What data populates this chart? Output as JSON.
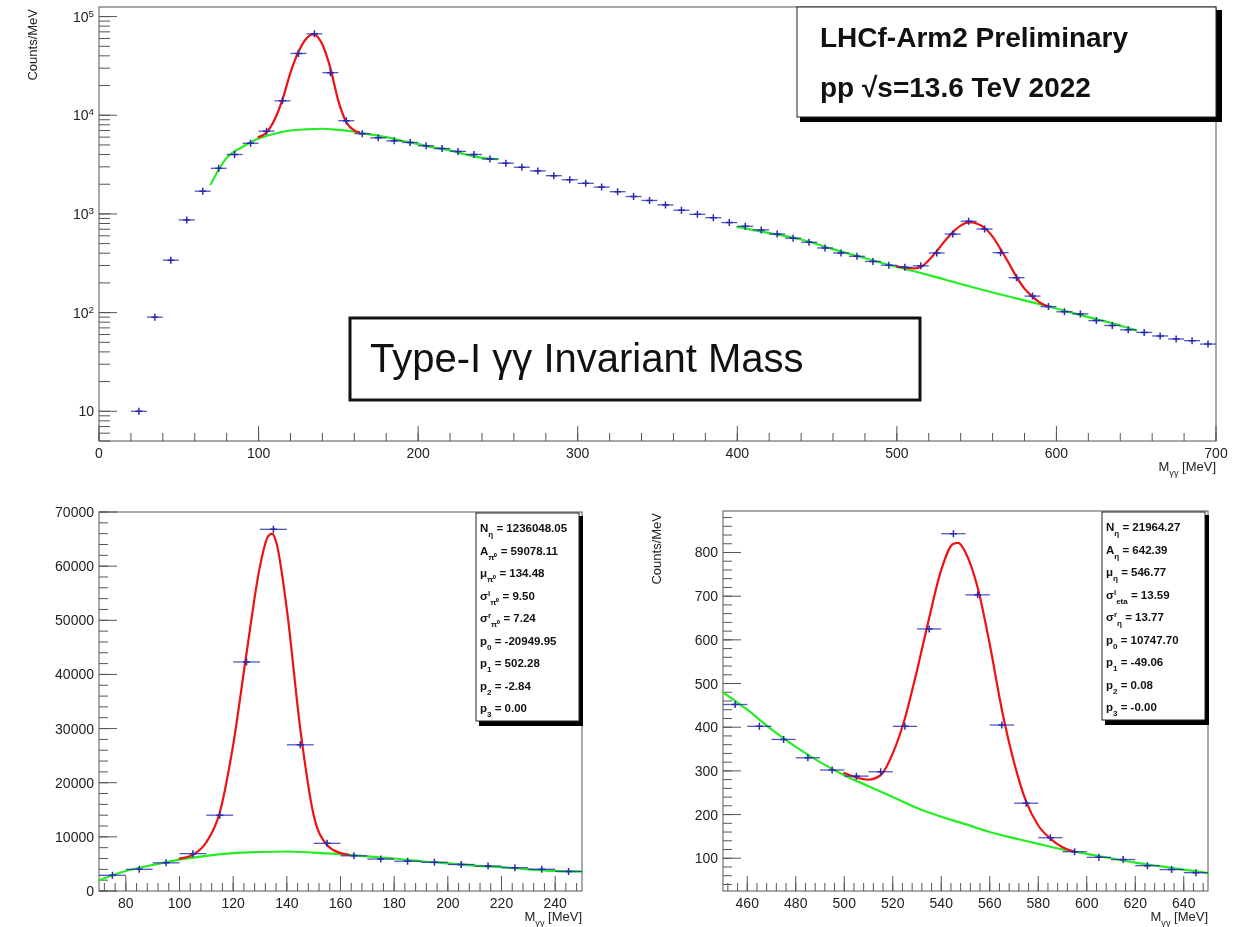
{
  "chart_data": [
    {
      "type": "scatter",
      "xlabel": "M$_{γγ}$ [MeV]",
      "ylabel": "Counts/MeV",
      "log": "y",
      "xlim": [
        0,
        700
      ],
      "ylim": [
        5,
        125000
      ],
      "xticks": [
        0,
        100,
        200,
        300,
        400,
        500,
        600,
        700
      ],
      "yticks": [
        {
          "value": 10,
          "label": "10"
        },
        {
          "value": 100,
          "label": "10$^{2}$"
        },
        {
          "value": 1000,
          "label": "10$^{3}$"
        },
        {
          "value": 10000,
          "label": "10$^{4}$"
        },
        {
          "value": 100000,
          "label": "10$^{5}$"
        }
      ],
      "annotations": [
        "LHCf-Arm2 Preliminary",
        "pp  √s=13.6 TeV 2022",
        "Type-I γγ Invariant Mass"
      ],
      "series": [
        {
          "type": "line",
          "color": "#22ee22",
          "x": [
            70,
            80,
            90,
            100,
            110,
            120,
            130,
            140,
            150,
            160,
            170,
            180,
            190,
            200,
            210,
            220,
            230,
            240,
            250
          ],
          "values": [
            2000,
            3700,
            4800,
            5800,
            6500,
            7000,
            7200,
            7300,
            7100,
            6800,
            6400,
            6000,
            5500,
            5100,
            4700,
            4400,
            4000,
            3700,
            3600
          ]
        },
        {
          "type": "line",
          "color": "#22ee22",
          "x": [
            400,
            420,
            440,
            460,
            480,
            500,
            520,
            540,
            560,
            580,
            600,
            620,
            640,
            650
          ],
          "values": [
            740,
            640,
            550,
            440,
            355,
            290,
            240,
            195,
            160,
            133,
            110,
            90,
            74,
            66
          ]
        },
        {
          "type": "line",
          "color": "#ee1111",
          "x": [
            100,
            105,
            110,
            115,
            120,
            125,
            130,
            133,
            134.5,
            136,
            140,
            145,
            150,
            155,
            160,
            163
          ],
          "values": [
            6000,
            6700,
            9000,
            14500,
            27000,
            44000,
            60000,
            65500,
            66000,
            64500,
            52000,
            30000,
            14000,
            8500,
            7000,
            6700
          ]
        },
        {
          "type": "line",
          "color": "#ee1111",
          "x": [
            500,
            505,
            510,
            515,
            520,
            525,
            530,
            535,
            540,
            545,
            547,
            550,
            555,
            560,
            565,
            570,
            575,
            580,
            585,
            590,
            595
          ],
          "values": [
            295,
            285,
            280,
            290,
            340,
            420,
            530,
            650,
            760,
            820,
            822,
            800,
            720,
            590,
            440,
            320,
            230,
            175,
            145,
            125,
            115
          ]
        },
        {
          "type": "scatter",
          "marker": "cross",
          "color": "#2a2ab0",
          "x": [
            25,
            35,
            45,
            55,
            65,
            75,
            85,
            95,
            105,
            115,
            125,
            135,
            145,
            155,
            165,
            175,
            185,
            195,
            205,
            215,
            225,
            235,
            245,
            255,
            265,
            275,
            285,
            295,
            305,
            315,
            325,
            335,
            345,
            355,
            365,
            375,
            385,
            395,
            405,
            415,
            425,
            435,
            445,
            455,
            465,
            475,
            485,
            495,
            505,
            515,
            525,
            535,
            545,
            555,
            565,
            575,
            585,
            595,
            605,
            615,
            625,
            635,
            645,
            655,
            665,
            675,
            685,
            695
          ],
          "values": [
            10,
            90,
            340,
            870,
            1700,
            2900,
            4000,
            5200,
            6900,
            14000,
            42300,
            66800,
            27000,
            8800,
            6500,
            5900,
            5500,
            5300,
            4900,
            4600,
            4300,
            4000,
            3600,
            3270,
            2970,
            2730,
            2440,
            2220,
            2040,
            1870,
            1680,
            1500,
            1370,
            1235,
            1090,
            990,
            917,
            817,
            750,
            688,
            625,
            568,
            516,
            452,
            402,
            372,
            330,
            302,
            288,
            298,
            402,
            625,
            843,
            703,
            405,
            226,
            147,
            115,
            102,
            97,
            83,
            74,
            67,
            63,
            58,
            54,
            52,
            48
          ],
          "xerrors": [
            5,
            5,
            5,
            5,
            5,
            5,
            5,
            5,
            5,
            5,
            5,
            5,
            5,
            5,
            5,
            5,
            5,
            5,
            5,
            5,
            5,
            5,
            5,
            5,
            5,
            5,
            5,
            5,
            5,
            5,
            5,
            5,
            5,
            5,
            5,
            5,
            5,
            5,
            5,
            5,
            5,
            5,
            5,
            5,
            5,
            5,
            5,
            5,
            5,
            5,
            5,
            5,
            5,
            5,
            5,
            5,
            5,
            5,
            5,
            5,
            5,
            5,
            5,
            5,
            5,
            5,
            5,
            5
          ]
        }
      ]
    },
    {
      "type": "scatter",
      "xlabel": "M$_{γγ}$ [MeV]",
      "xlim": [
        70,
        250
      ],
      "ylim": [
        0,
        70000
      ],
      "xticks": [
        80,
        100,
        120,
        140,
        160,
        180,
        200,
        220,
        240
      ],
      "yticks": [
        0,
        10000,
        20000,
        30000,
        40000,
        50000,
        60000,
        70000
      ],
      "annotations": [
        "N$_{η}$ = 1236048.05",
        "A$_{π⁰}$ = 59078.11",
        "μ$_{π⁰}$ = 134.48",
        "σ$^{l}$$_{π⁰}$ = 9.50",
        "σ$^{r}$$_{π⁰}$ = 7.24",
        "p$_{0}$ = -20949.95",
        "p$_{1}$ = 502.28",
        "p$_{2}$ = -2.84",
        "p$_{3}$ = 0.00"
      ],
      "series": [
        {
          "type": "line",
          "color": "#22ee22",
          "x": [
            70,
            80,
            90,
            100,
            110,
            120,
            130,
            140,
            150,
            160,
            170,
            180,
            190,
            200,
            210,
            220,
            230,
            240,
            250
          ],
          "values": [
            2000,
            3700,
            4800,
            5800,
            6500,
            7000,
            7200,
            7300,
            7100,
            6800,
            6400,
            6000,
            5500,
            5100,
            4700,
            4400,
            4000,
            3700,
            3600
          ]
        },
        {
          "type": "line",
          "color": "#ee1111",
          "x": [
            100,
            105,
            110,
            115,
            120,
            125,
            130,
            133,
            134.5,
            136,
            140,
            145,
            150,
            155,
            160,
            163
          ],
          "values": [
            6000,
            6700,
            9000,
            14500,
            27000,
            44000,
            60000,
            65500,
            66000,
            64500,
            52000,
            30000,
            14000,
            8500,
            7000,
            6700
          ]
        },
        {
          "type": "scatter",
          "marker": "cross",
          "color": "#2a2ab0",
          "x": [
            75,
            85,
            95,
            105,
            115,
            125,
            135,
            145,
            155,
            165,
            175,
            185,
            195,
            205,
            215,
            225,
            235,
            245
          ],
          "values": [
            2900,
            4000,
            5200,
            6900,
            14000,
            42300,
            66800,
            27000,
            8800,
            6500,
            5900,
            5500,
            5300,
            4900,
            4600,
            4300,
            4000,
            3600
          ],
          "xerrors": [
            5,
            5,
            5,
            5,
            5,
            5,
            5,
            5,
            5,
            5,
            5,
            5,
            5,
            5,
            5,
            5,
            5,
            5
          ]
        }
      ]
    },
    {
      "type": "scatter",
      "xlabel": "M$_{γγ}$ [MeV]",
      "ylabel": "Counts/MeV",
      "xlim": [
        450,
        650
      ],
      "ylim": [
        25,
        895
      ],
      "xticks": [
        460,
        480,
        500,
        520,
        540,
        560,
        580,
        600,
        620,
        640
      ],
      "yticks": [
        100,
        200,
        300,
        400,
        500,
        600,
        700,
        800
      ],
      "annotations": [
        "N$_{η}$ = 21964.27",
        "A$_{η}$ = 642.39",
        "μ$_{η}$ = 546.77",
        "σ$^{l}$$_{eta}$ = 13.59",
        "σ$^{r}$$_{η}$ = 13.77",
        "p$_{0}$ = 10747.70",
        "p$_{1}$ = -49.06",
        "p$_{2}$ = 0.08",
        "p$_{3}$ = -0.00"
      ],
      "series": [
        {
          "type": "line",
          "color": "#22ee22",
          "x": [
            450,
            460,
            470,
            480,
            490,
            500,
            510,
            520,
            530,
            540,
            550,
            560,
            570,
            580,
            590,
            600,
            610,
            620,
            630,
            640,
            650
          ],
          "values": [
            480,
            440,
            395,
            355,
            320,
            290,
            265,
            240,
            215,
            195,
            178,
            160,
            146,
            133,
            120,
            110,
            100,
            90,
            82,
            74,
            66
          ]
        },
        {
          "type": "line",
          "color": "#ee1111",
          "x": [
            500,
            505,
            510,
            515,
            520,
            525,
            530,
            535,
            540,
            545,
            547,
            550,
            555,
            560,
            565,
            570,
            575,
            580,
            585,
            590,
            595
          ],
          "values": [
            295,
            285,
            280,
            290,
            340,
            420,
            530,
            650,
            760,
            820,
            822,
            800,
            720,
            590,
            440,
            320,
            230,
            175,
            145,
            125,
            115
          ]
        },
        {
          "type": "scatter",
          "marker": "cross",
          "color": "#2a2ab0",
          "x": [
            455,
            465,
            475,
            485,
            495,
            505,
            515,
            525,
            535,
            545,
            555,
            565,
            575,
            585,
            595,
            605,
            615,
            625,
            635,
            645
          ],
          "values": [
            452,
            402,
            372,
            330,
            302,
            288,
            298,
            402,
            625,
            843,
            703,
            405,
            226,
            147,
            115,
            102,
            97,
            83,
            74,
            67
          ],
          "xerrors": [
            5,
            5,
            5,
            5,
            5,
            5,
            5,
            5,
            5,
            5,
            5,
            5,
            5,
            5,
            5,
            5,
            5,
            5,
            5,
            5
          ]
        }
      ]
    }
  ]
}
